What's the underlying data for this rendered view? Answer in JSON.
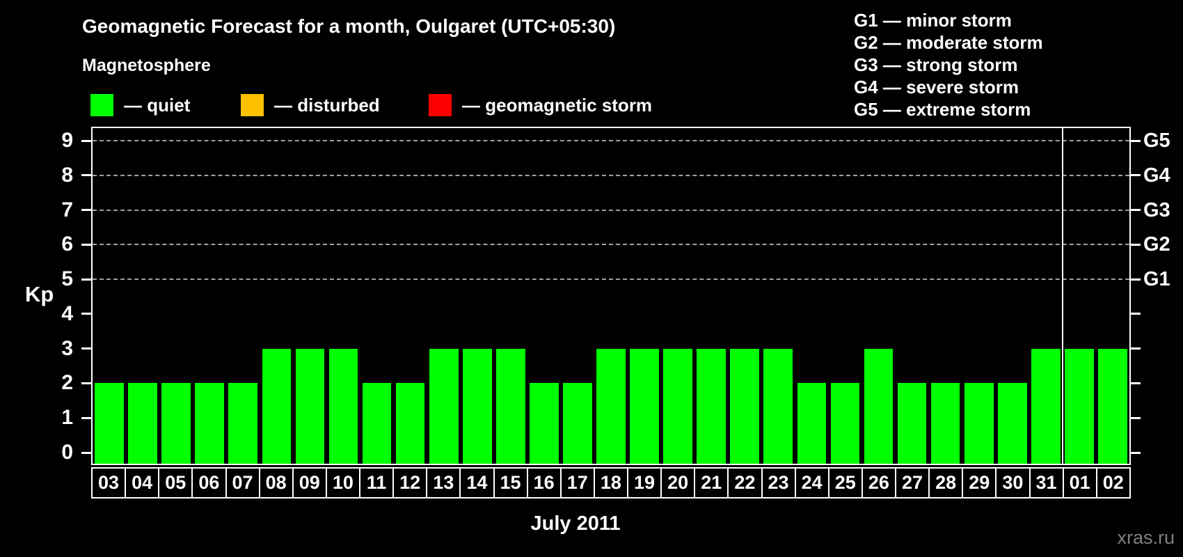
{
  "title": "Geomagnetic Forecast for a month, Oulgaret (UTC+05:30)",
  "watermark": "xras.ru",
  "legend": {
    "heading": "Magnetosphere",
    "items": [
      {
        "name": "quiet",
        "label": "— quiet",
        "color": "#00ff00"
      },
      {
        "name": "disturbed",
        "label": "— disturbed",
        "color": "#ffc000"
      },
      {
        "name": "geomagnetic storm",
        "label": "— geomagnetic storm",
        "color": "#ff0000"
      }
    ]
  },
  "storm_scale_legend": [
    "G1 — minor storm",
    "G2 — moderate storm",
    "G3 — strong storm",
    "G4 — severe storm",
    "G5 — extreme storm"
  ],
  "chart_data": {
    "type": "bar",
    "title": "Geomagnetic Forecast for a month, Oulgaret (UTC+05:30)",
    "xlabel": "July 2011",
    "ylabel": "Kp",
    "ylim": [
      0,
      9
    ],
    "yticks": [
      0,
      1,
      2,
      3,
      4,
      5,
      6,
      7,
      8,
      9
    ],
    "gridlines_at": [
      5,
      6,
      7,
      8,
      9
    ],
    "grid": "dashed horizontal lines only at Kp 5-9",
    "legend_position": "top",
    "right_axis_labels": [
      {
        "kp": 5,
        "label": "G1"
      },
      {
        "kp": 6,
        "label": "G2"
      },
      {
        "kp": 7,
        "label": "G3"
      },
      {
        "kp": 8,
        "label": "G4"
      },
      {
        "kp": 9,
        "label": "G5"
      }
    ],
    "categories": [
      "03",
      "04",
      "05",
      "06",
      "07",
      "08",
      "09",
      "10",
      "11",
      "12",
      "13",
      "14",
      "15",
      "16",
      "17",
      "18",
      "19",
      "20",
      "21",
      "22",
      "23",
      "24",
      "25",
      "26",
      "27",
      "28",
      "29",
      "30",
      "31",
      "01",
      "02"
    ],
    "values": [
      2,
      2,
      2,
      2,
      2,
      3,
      3,
      3,
      2,
      2,
      3,
      3,
      3,
      2,
      2,
      3,
      3,
      3,
      3,
      3,
      3,
      2,
      2,
      3,
      2,
      2,
      2,
      2,
      3,
      3,
      3
    ],
    "series_color_meaning": "all bars green = quiet",
    "bar_color": "#00ff00",
    "month_separator_after_index": 28
  }
}
